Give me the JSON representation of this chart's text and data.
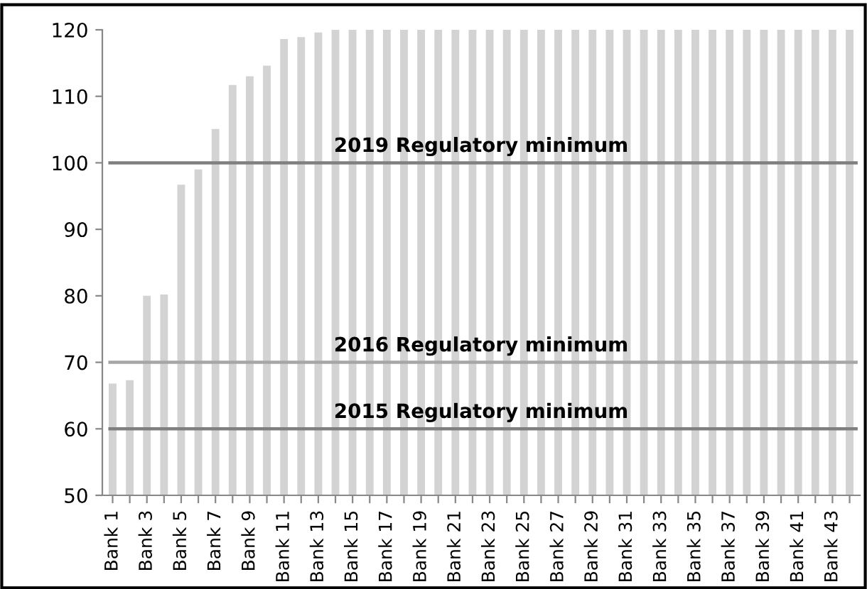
{
  "chart_data": {
    "type": "bar",
    "categories": [
      "Bank 1",
      null,
      "Bank 3",
      null,
      "Bank 5",
      null,
      "Bank 7",
      null,
      "Bank 9",
      null,
      "Bank 11",
      null,
      "Bank 13",
      null,
      "Bank 15",
      null,
      "Bank 17",
      null,
      "Bank 19",
      null,
      "Bank 21",
      null,
      "Bank 23",
      null,
      "Bank 25",
      null,
      "Bank 27",
      null,
      "Bank 29",
      null,
      "Bank 31",
      null,
      "Bank 33",
      null,
      "Bank 35",
      null,
      "Bank 37",
      null,
      "Bank 39",
      null,
      "Bank 41",
      null,
      "Bank 43",
      null
    ],
    "values": [
      66.8,
      67.3,
      80,
      80.2,
      96.7,
      99,
      105.1,
      111.7,
      113,
      114.6,
      118.6,
      118.9,
      119.6,
      120,
      120,
      120,
      120,
      120,
      120,
      120,
      120,
      120,
      120,
      120,
      120,
      120,
      120,
      120,
      120,
      120,
      120,
      120,
      120,
      120,
      120,
      120,
      120,
      120,
      120,
      120,
      120,
      120,
      120,
      120
    ],
    "color": "#d3d3d3",
    "ylim": [
      50,
      120
    ],
    "yticks": [
      50,
      60,
      70,
      80,
      90,
      100,
      110,
      120
    ],
    "grid": false,
    "legend": false,
    "ref_lines": [
      {
        "axis": "y",
        "value": 100,
        "label": "2019 Regulatory minimum",
        "color": "#7f7f7f"
      },
      {
        "axis": "y",
        "value": 70,
        "label": "2016 Regulatory minimum",
        "color": "#a6a6a6"
      },
      {
        "axis": "y",
        "value": 60,
        "label": "2015 Regulatory minimum",
        "color": "#7f7f7f"
      }
    ]
  }
}
